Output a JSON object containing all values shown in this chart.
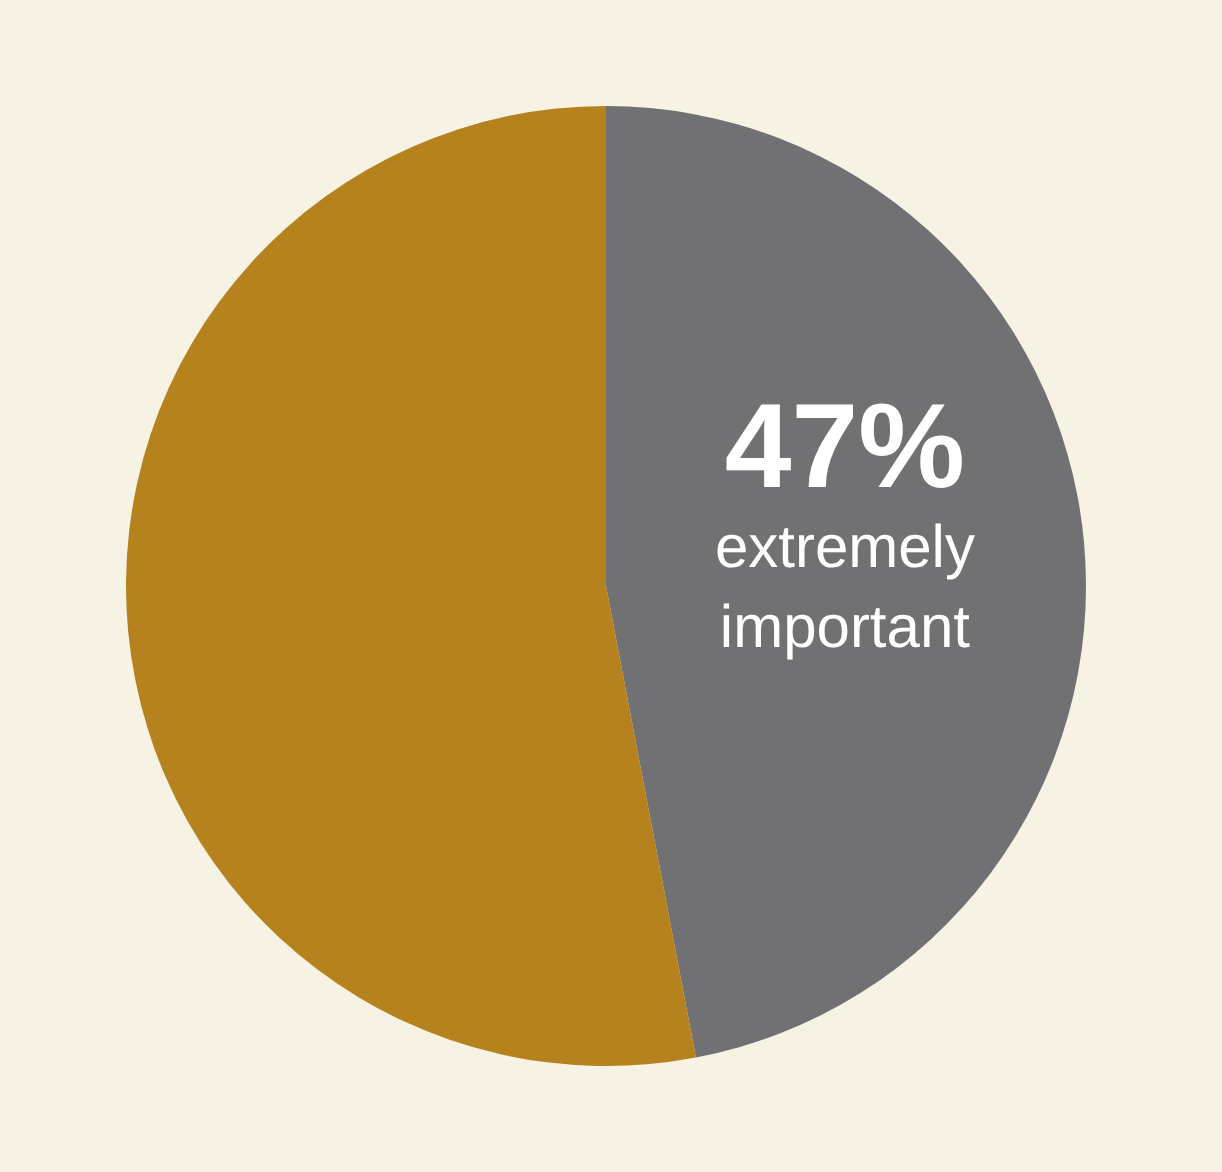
{
  "chart_data": {
    "type": "pie",
    "categories": [
      "extremely important",
      null
    ],
    "values": [
      47,
      53
    ],
    "colors": [
      "#717073",
      "#b5821e"
    ],
    "value_labels": [
      "47%",
      null
    ],
    "legend": false
  }
}
